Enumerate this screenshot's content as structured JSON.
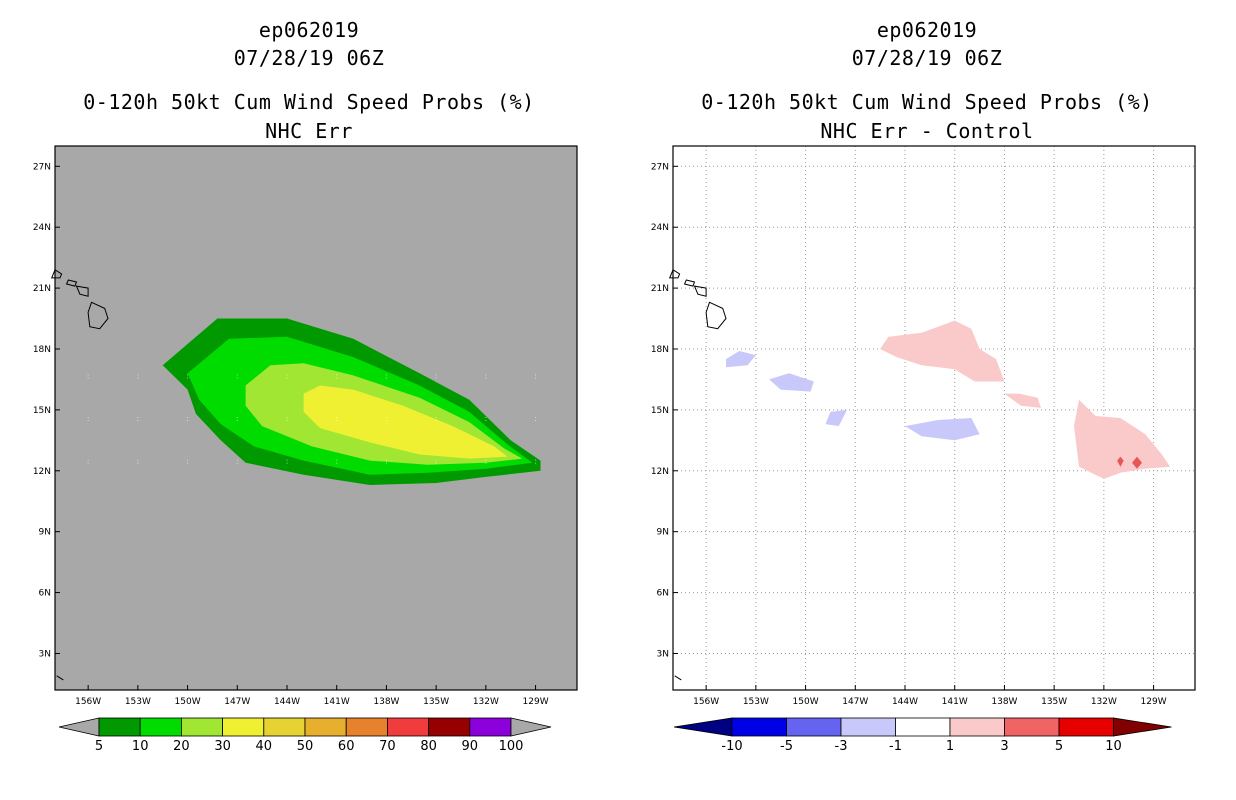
{
  "chart_data": [
    {
      "type": "contour-map",
      "storm_id": "ep062019",
      "datetime": "07/28/19 06Z",
      "title": "0-120h 50kt Cum Wind Speed Probs (%)",
      "subtitle": "NHC Err",
      "background_color": "#a8a8a8",
      "lon_ticks": [
        "156W",
        "153W",
        "150W",
        "147W",
        "144W",
        "141W",
        "138W",
        "135W",
        "132W",
        "129W"
      ],
      "lat_ticks": [
        "27N",
        "24N",
        "21N",
        "18N",
        "15N",
        "12N",
        "9N",
        "6N",
        "3N"
      ],
      "lon_range": [
        -158,
        -126.5
      ],
      "lat_range": [
        1.2,
        28
      ],
      "grid": false,
      "colorbar": {
        "colors": [
          "#009a00",
          "#00dc00",
          "#a0e632",
          "#f0f032",
          "#e6d232",
          "#e6af2d",
          "#e6822d",
          "#f03c3c",
          "#960000",
          "#8c00dc"
        ],
        "labels": [
          "5",
          "10",
          "20",
          "30",
          "40",
          "50",
          "60",
          "70",
          "80",
          "90",
          "100"
        ],
        "under_color": "#a8a8a8",
        "over_color": "#a8a8a8"
      },
      "contour_levels": [
        {
          "level": "5",
          "color": "#009a00",
          "outline": [
            [
              -151.5,
              17.2
            ],
            [
              -148.2,
              19.5
            ],
            [
              -144,
              19.5
            ],
            [
              -140,
              18.5
            ],
            [
              -136,
              16.8
            ],
            [
              -133,
              15.5
            ],
            [
              -130.5,
              13.5
            ],
            [
              -128.7,
              12.5
            ],
            [
              -128.7,
              12
            ],
            [
              -132,
              11.7
            ],
            [
              -135,
              11.4
            ],
            [
              -139,
              11.3
            ],
            [
              -143,
              11.8
            ],
            [
              -146.5,
              12.4
            ],
            [
              -148,
              13.5
            ],
            [
              -149.5,
              14.8
            ],
            [
              -150,
              16
            ]
          ]
        },
        {
          "level": "10",
          "color": "#00dc00",
          "outline": [
            [
              -150,
              16.8
            ],
            [
              -147.5,
              18.5
            ],
            [
              -144,
              18.6
            ],
            [
              -140,
              17.6
            ],
            [
              -136,
              16.2
            ],
            [
              -133,
              14.9
            ],
            [
              -130.7,
              13.3
            ],
            [
              -129.2,
              12.4
            ],
            [
              -132,
              12.1
            ],
            [
              -135.5,
              11.9
            ],
            [
              -139,
              11.8
            ],
            [
              -143,
              12.5
            ],
            [
              -146,
              13.2
            ],
            [
              -148,
              14.3
            ],
            [
              -149.3,
              15.5
            ]
          ]
        },
        {
          "level": "20",
          "color": "#a0e632",
          "outline": [
            [
              -146.5,
              16.2
            ],
            [
              -145,
              17.2
            ],
            [
              -143,
              17.3
            ],
            [
              -140,
              16.7
            ],
            [
              -136,
              15.6
            ],
            [
              -133,
              14.4
            ],
            [
              -130.9,
              13.1
            ],
            [
              -129.8,
              12.6
            ],
            [
              -132,
              12.4
            ],
            [
              -135.5,
              12.3
            ],
            [
              -139,
              12.5
            ],
            [
              -142.5,
              13.2
            ],
            [
              -145.5,
              14.2
            ],
            [
              -146.5,
              15.2
            ]
          ]
        },
        {
          "level": "30",
          "color": "#f0f032",
          "outline": [
            [
              -143,
              15.8
            ],
            [
              -142,
              16.2
            ],
            [
              -140,
              16
            ],
            [
              -137,
              15.2
            ],
            [
              -134,
              14.2
            ],
            [
              -131.5,
              13.2
            ],
            [
              -130.7,
              12.7
            ],
            [
              -133,
              12.6
            ],
            [
              -136,
              12.8
            ],
            [
              -139,
              13.4
            ],
            [
              -142,
              14.1
            ],
            [
              -143,
              14.9
            ]
          ]
        }
      ],
      "islands": "Hawaiian Islands outline near 21N 156W"
    },
    {
      "type": "contour-map",
      "storm_id": "ep062019",
      "datetime": "07/28/19 06Z",
      "title": "0-120h 50kt Cum Wind Speed Probs (%)",
      "subtitle": "NHC Err - Control",
      "background_color": "#ffffff",
      "lon_ticks": [
        "156W",
        "153W",
        "150W",
        "147W",
        "144W",
        "141W",
        "138W",
        "135W",
        "132W",
        "129W"
      ],
      "lat_ticks": [
        "27N",
        "24N",
        "21N",
        "18N",
        "15N",
        "12N",
        "9N",
        "6N",
        "3N"
      ],
      "lon_range": [
        -158,
        -126.5
      ],
      "lat_range": [
        1.2,
        28
      ],
      "grid": true,
      "colorbar": {
        "colors": [
          "#0000e6",
          "#6464f0",
          "#c8c8fa",
          "#ffffff",
          "#facaca",
          "#f06464",
          "#e60000"
        ],
        "labels": [
          "-10",
          "-5",
          "-3",
          "-1",
          "1",
          "3",
          "5",
          "10"
        ],
        "under_color": "#000082",
        "over_color": "#820000"
      },
      "contour_regions": [
        {
          "sign": "positive",
          "color": "#facaca",
          "outline": [
            [
              -145,
              18.6
            ],
            [
              -143,
              18.8
            ],
            [
              -141,
              19.4
            ],
            [
              -140,
              19
            ],
            [
              -139.5,
              18
            ],
            [
              -138.5,
              17.5
            ],
            [
              -138,
              16.4
            ],
            [
              -139.8,
              16.4
            ],
            [
              -141,
              17
            ],
            [
              -143,
              17.2
            ],
            [
              -144.5,
              17.6
            ],
            [
              -145.5,
              18
            ]
          ]
        },
        {
          "sign": "positive",
          "color": "#facaca",
          "outline": [
            [
              -133.5,
              15.5
            ],
            [
              -132.5,
              14.7
            ],
            [
              -131,
              14.6
            ],
            [
              -129.5,
              13.8
            ],
            [
              -128.5,
              12.8
            ],
            [
              -128,
              12.2
            ],
            [
              -129.5,
              12.1
            ],
            [
              -131,
              11.9
            ],
            [
              -132,
              11.6
            ],
            [
              -133.5,
              12.2
            ],
            [
              -133.8,
              14.2
            ]
          ]
        },
        {
          "sign": "positive",
          "color": "#facaca",
          "outline": [
            [
              -138,
              15.8
            ],
            [
              -137,
              15.2
            ],
            [
              -135.8,
              15.1
            ],
            [
              -136,
              15.6
            ],
            [
              -137.1,
              15.8
            ]
          ]
        },
        {
          "sign": "positive",
          "color": "#e6575a",
          "outline": [
            [
              -131,
              12.7
            ],
            [
              -130.8,
              12.5
            ],
            [
              -131,
              12.2
            ],
            [
              -131.2,
              12.5
            ]
          ]
        },
        {
          "sign": "positive",
          "color": "#e6575a",
          "outline": [
            [
              -130,
              12.7
            ],
            [
              -129.7,
              12.4
            ],
            [
              -130,
              12.1
            ],
            [
              -130.3,
              12.4
            ]
          ]
        },
        {
          "sign": "negative",
          "color": "#c8c8fa",
          "outline": [
            [
              -154.8,
              17.5
            ],
            [
              -154,
              17.9
            ],
            [
              -153,
              17.7
            ],
            [
              -153.5,
              17.2
            ],
            [
              -154.8,
              17.1
            ]
          ]
        },
        {
          "sign": "negative",
          "color": "#c8c8fa",
          "outline": [
            [
              -152.2,
              16.5
            ],
            [
              -151,
              16.8
            ],
            [
              -149.5,
              16.4
            ],
            [
              -149.7,
              15.9
            ],
            [
              -151.5,
              16
            ]
          ]
        },
        {
          "sign": "negative",
          "color": "#c8c8fa",
          "outline": [
            [
              -144,
              14.2
            ],
            [
              -142,
              14.5
            ],
            [
              -140,
              14.6
            ],
            [
              -139.5,
              13.8
            ],
            [
              -141,
              13.5
            ],
            [
              -143,
              13.7
            ]
          ]
        },
        {
          "sign": "negative",
          "color": "#c8c8fa",
          "outline": [
            [
              -148.5,
              14.9
            ],
            [
              -147.5,
              15
            ],
            [
              -148,
              14.2
            ],
            [
              -148.8,
              14.3
            ]
          ]
        }
      ],
      "islands": "Hawaiian Islands outline near 21N 156W"
    }
  ]
}
